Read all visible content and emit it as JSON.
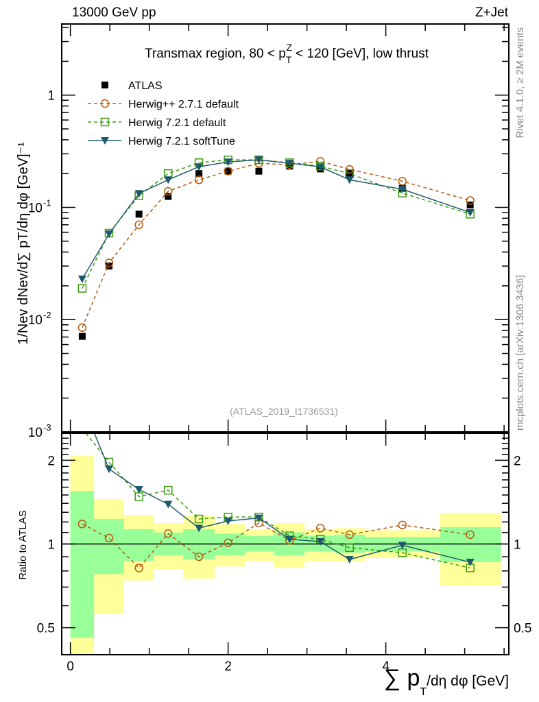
{
  "header": {
    "left": "13000 GeV pp",
    "right": "Z+Jet"
  },
  "side_labels": {
    "rivet": "Rivet 4.1.0, ≥ 2M events",
    "mcplots": "mcplots.cern.ch [arXiv:1306.3436]"
  },
  "analysis_id": "(ATLAS_2019_I1736531)",
  "chart_data": [
    {
      "type": "line",
      "panel": "main",
      "title": {
        "pre": "Transmax region, 80 < p",
        "sub": "T",
        "sup": "Z",
        "post": " < 120 [GeV], low thrust"
      },
      "ylabel": "1/Nev dNev/d∑ pT/dη dφ  [GeV]⁻¹",
      "yscale": "log",
      "ylim": [
        0.001,
        4.3
      ],
      "xlim": [
        -0.11,
        5.56
      ],
      "y_ticks": [
        {
          "value": 1,
          "label": "1"
        },
        {
          "value": 0.1,
          "label": "10",
          "exp": "-1"
        },
        {
          "value": 0.01,
          "label": "10",
          "exp": "-2"
        },
        {
          "value": 0.001,
          "label": "10",
          "exp": "-3"
        }
      ],
      "legend_placement": "top-left",
      "x": [
        0.15,
        0.49,
        0.87,
        1.24,
        1.63,
        2.0,
        2.39,
        2.78,
        3.17,
        3.54,
        4.21,
        5.07
      ],
      "series": [
        {
          "name": "ATLAS",
          "color": "#000000",
          "marker": "filled-square",
          "style": "none",
          "values": [
            0.0071,
            0.03,
            0.087,
            0.125,
            0.2,
            0.21,
            0.21,
            0.233,
            0.22,
            0.2,
            0.148,
            0.105
          ]
        },
        {
          "name": "Herwig++ 2.7.1 default",
          "color": "#b85a10",
          "marker": "open-circle",
          "style": "dashed",
          "values": [
            0.0085,
            0.032,
            0.07,
            0.139,
            0.176,
            0.21,
            0.247,
            0.24,
            0.257,
            0.218,
            0.171,
            0.115
          ]
        },
        {
          "name": "Herwig 7.2.1 default",
          "color": "#3d9a12",
          "marker": "open-square",
          "style": "dashed",
          "values": [
            0.019,
            0.059,
            0.127,
            0.2,
            0.25,
            0.265,
            0.265,
            0.25,
            0.233,
            0.2,
            0.134,
            0.087
          ]
        },
        {
          "name": "Herwig 7.2.1 softTune",
          "color": "#1e5a6c",
          "marker": "filled-triangle-down",
          "style": "solid",
          "values": [
            0.023,
            0.058,
            0.133,
            0.176,
            0.23,
            0.254,
            0.265,
            0.247,
            0.23,
            0.176,
            0.145,
            0.09
          ]
        }
      ]
    },
    {
      "type": "line",
      "panel": "ratio",
      "ylabel": "Ratio to ATLAS",
      "xlabel": {
        "pre": "∑ p",
        "sub": "T",
        "post": "/dη dφ [GeV]"
      },
      "yscale": "log",
      "ylim": [
        0.4,
        2.5
      ],
      "y_ticks": [
        {
          "value": 2,
          "label": "2"
        },
        {
          "value": 1,
          "label": "1"
        },
        {
          "value": 0.5,
          "label": "0.5"
        }
      ],
      "x_ticks": [
        {
          "value": 0,
          "label": "0"
        },
        {
          "value": 2,
          "label": "2"
        },
        {
          "value": 4,
          "label": "4"
        }
      ],
      "bin_edges": [
        0.0,
        0.3,
        0.68,
        1.06,
        1.43,
        1.83,
        2.22,
        2.58,
        2.97,
        3.35,
        3.74,
        4.69,
        5.46
      ],
      "band_total": {
        "color": "#ffff99",
        "low": [
          0.3,
          0.56,
          0.74,
          0.81,
          0.75,
          0.83,
          0.87,
          0.82,
          0.87,
          0.87,
          0.89,
          0.71
        ],
        "high": [
          2.08,
          1.45,
          1.27,
          1.19,
          1.26,
          1.18,
          1.13,
          1.19,
          1.13,
          1.14,
          1.12,
          1.29
        ]
      },
      "band_stat": {
        "color": "#99ff99",
        "low": [
          0.46,
          0.78,
          0.87,
          0.91,
          0.88,
          0.91,
          0.94,
          0.91,
          0.94,
          0.93,
          0.94,
          0.86
        ],
        "high": [
          1.55,
          1.23,
          1.13,
          1.1,
          1.13,
          1.09,
          1.07,
          1.1,
          1.07,
          1.08,
          1.06,
          1.15
        ]
      },
      "series": [
        {
          "name": "Herwig++ 2.7.1 default",
          "values": [
            1.18,
            1.05,
            0.82,
            1.09,
            0.9,
            1.01,
            1.19,
            1.03,
            1.14,
            1.08,
            1.17,
            1.08
          ]
        },
        {
          "name": "Herwig 7.2.1 default",
          "values": [
            2.6,
            1.97,
            1.48,
            1.56,
            1.23,
            1.25,
            1.25,
            1.07,
            1.04,
            0.97,
            0.93,
            0.82
          ]
        },
        {
          "name": "Herwig 7.2.1 softTune",
          "values": [
            3.2,
            1.86,
            1.57,
            1.39,
            1.14,
            1.21,
            1.24,
            1.04,
            1.02,
            0.88,
            0.99,
            0.86
          ]
        }
      ]
    }
  ]
}
